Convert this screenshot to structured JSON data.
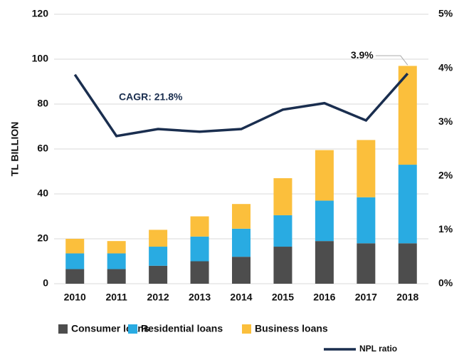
{
  "chart_data": {
    "type": "bar",
    "stacked": true,
    "ylabel": "TL BILLION",
    "categories": [
      "2010",
      "2011",
      "2012",
      "2013",
      "2014",
      "2015",
      "2016",
      "2017",
      "2018"
    ],
    "series": [
      {
        "name": "Consumer loans",
        "color": "#4d4d4d",
        "values": [
          6.5,
          6.5,
          8,
          10,
          12,
          16.5,
          19,
          18,
          18
        ]
      },
      {
        "name": "Residential loans",
        "color": "#29abe2",
        "values": [
          7,
          7,
          8.5,
          11,
          12.5,
          14,
          18,
          20.5,
          35
        ]
      },
      {
        "name": "Business loans",
        "color": "#fbbf3c",
        "values": [
          6.5,
          5.5,
          7.5,
          9,
          11,
          16.5,
          22.5,
          25.5,
          44
        ]
      },
      {
        "name": "NPL ratio",
        "color": "#1a2e4f",
        "type": "line",
        "axis": "y2",
        "values": [
          3.88,
          2.74,
          2.87,
          2.82,
          2.87,
          3.23,
          3.35,
          3.03,
          3.9
        ],
        "value_labels": [
          null,
          null,
          null,
          null,
          null,
          null,
          null,
          null,
          "3.9%"
        ]
      }
    ],
    "ylim": [
      0,
      120
    ],
    "yticks": [
      0,
      20,
      40,
      60,
      80,
      100,
      120
    ],
    "y2lim": [
      0,
      5
    ],
    "y2ticks": [
      {
        "value": 0,
        "label": "0%"
      },
      {
        "value": 1,
        "label": "1%"
      },
      {
        "value": 2,
        "label": "2%"
      },
      {
        "value": 3,
        "label": "3%"
      },
      {
        "value": 4,
        "label": "4%"
      },
      {
        "value": 5,
        "label": "5%"
      }
    ],
    "grid": true,
    "annotations": [
      {
        "text": "CAGR: 21.8%"
      }
    ],
    "legend": "bottom"
  }
}
